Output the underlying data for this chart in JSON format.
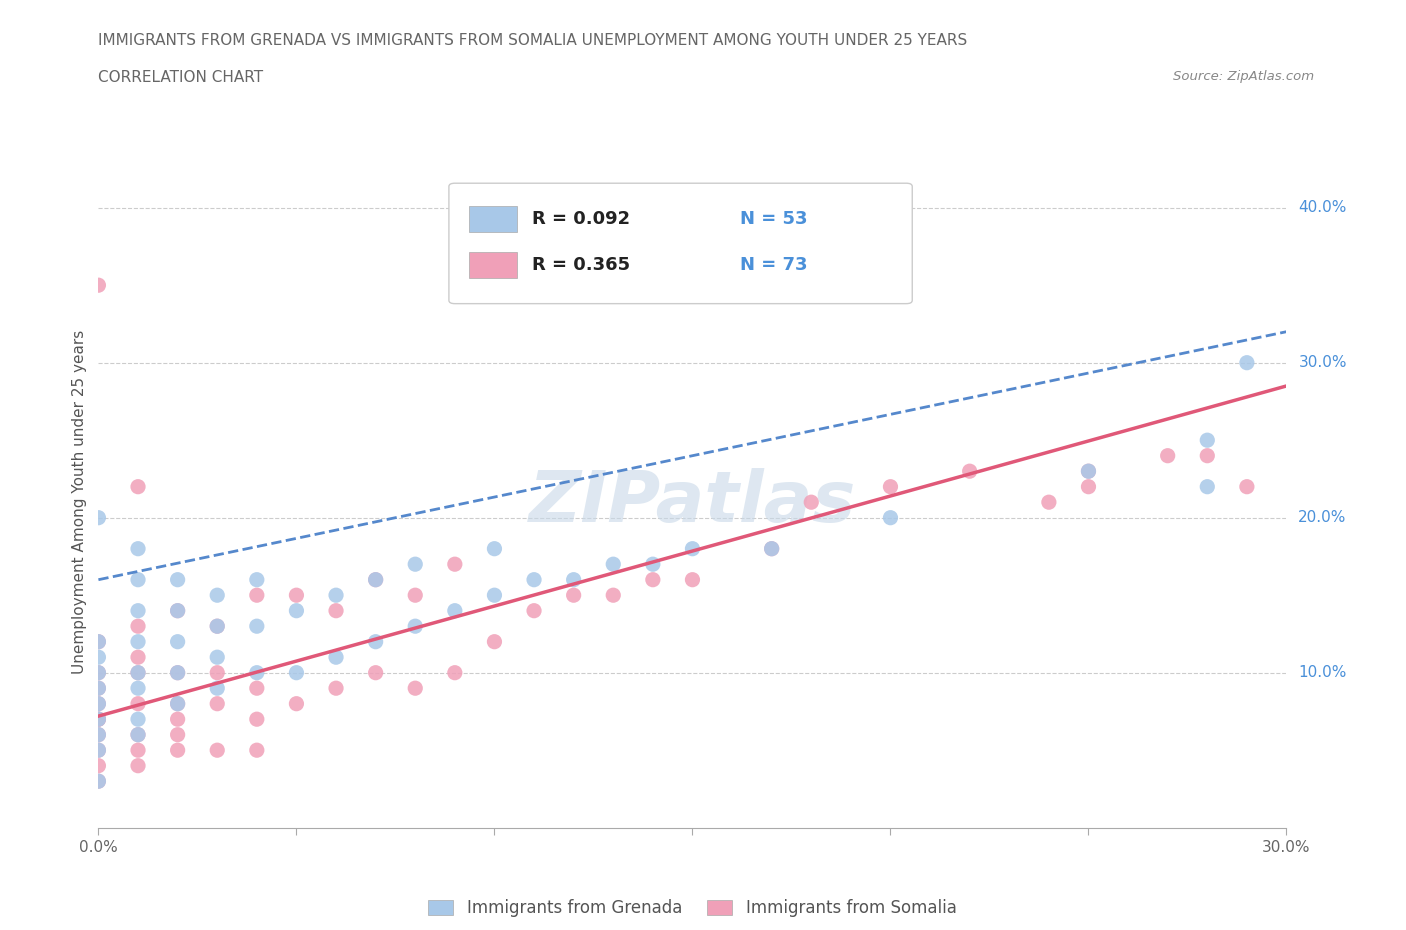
{
  "title_line1": "IMMIGRANTS FROM GRENADA VS IMMIGRANTS FROM SOMALIA UNEMPLOYMENT AMONG YOUTH UNDER 25 YEARS",
  "title_line2": "CORRELATION CHART",
  "source_text": "Source: ZipAtlas.com",
  "ylabel": "Unemployment Among Youth under 25 years",
  "xlim": [
    0.0,
    0.3
  ],
  "ylim": [
    0.0,
    0.42
  ],
  "yticks": [
    0.1,
    0.2,
    0.3,
    0.4
  ],
  "ytick_labels": [
    "10.0%",
    "20.0%",
    "30.0%",
    "40.0%"
  ],
  "xticks": [
    0.0,
    0.05,
    0.1,
    0.15,
    0.2,
    0.25,
    0.3
  ],
  "xtick_labels": [
    "0.0%",
    "",
    "",
    "",
    "",
    "",
    "30.0%"
  ],
  "grenada_color": "#a8c8e8",
  "somalia_color": "#f0a0b8",
  "grenada_line_color": "#5588cc",
  "somalia_line_color": "#e05878",
  "watermark": "ZIPatlas",
  "watermark_color": "#c8d8e8",
  "grenada_scatter_x": [
    0.0,
    0.0,
    0.0,
    0.0,
    0.0,
    0.0,
    0.0,
    0.0,
    0.0,
    0.0,
    0.01,
    0.01,
    0.01,
    0.01,
    0.01,
    0.01,
    0.01,
    0.01,
    0.02,
    0.02,
    0.02,
    0.02,
    0.02,
    0.03,
    0.03,
    0.03,
    0.03,
    0.04,
    0.04,
    0.04,
    0.05,
    0.05,
    0.06,
    0.06,
    0.07,
    0.07,
    0.08,
    0.08,
    0.09,
    0.1,
    0.1,
    0.11,
    0.12,
    0.13,
    0.14,
    0.15,
    0.17,
    0.2,
    0.25,
    0.28,
    0.28,
    0.29
  ],
  "grenada_scatter_y": [
    0.03,
    0.05,
    0.06,
    0.07,
    0.08,
    0.09,
    0.1,
    0.11,
    0.12,
    0.2,
    0.06,
    0.07,
    0.09,
    0.1,
    0.12,
    0.14,
    0.16,
    0.18,
    0.08,
    0.1,
    0.12,
    0.14,
    0.16,
    0.09,
    0.11,
    0.13,
    0.15,
    0.1,
    0.13,
    0.16,
    0.1,
    0.14,
    0.11,
    0.15,
    0.12,
    0.16,
    0.13,
    0.17,
    0.14,
    0.15,
    0.18,
    0.16,
    0.16,
    0.17,
    0.17,
    0.18,
    0.18,
    0.2,
    0.23,
    0.22,
    0.25,
    0.3
  ],
  "somalia_scatter_x": [
    0.0,
    0.0,
    0.0,
    0.0,
    0.0,
    0.0,
    0.0,
    0.0,
    0.0,
    0.0,
    0.0,
    0.01,
    0.01,
    0.01,
    0.01,
    0.01,
    0.01,
    0.01,
    0.01,
    0.02,
    0.02,
    0.02,
    0.02,
    0.02,
    0.02,
    0.03,
    0.03,
    0.03,
    0.03,
    0.04,
    0.04,
    0.04,
    0.04,
    0.05,
    0.05,
    0.06,
    0.06,
    0.07,
    0.07,
    0.08,
    0.08,
    0.09,
    0.09,
    0.1,
    0.11,
    0.12,
    0.13,
    0.14,
    0.15,
    0.17,
    0.18,
    0.2,
    0.22,
    0.24,
    0.25,
    0.25,
    0.27,
    0.28,
    0.29
  ],
  "somalia_scatter_y": [
    0.03,
    0.04,
    0.05,
    0.06,
    0.07,
    0.07,
    0.08,
    0.09,
    0.1,
    0.12,
    0.35,
    0.04,
    0.05,
    0.06,
    0.08,
    0.1,
    0.11,
    0.13,
    0.22,
    0.05,
    0.06,
    0.07,
    0.08,
    0.1,
    0.14,
    0.05,
    0.08,
    0.1,
    0.13,
    0.05,
    0.07,
    0.09,
    0.15,
    0.08,
    0.15,
    0.09,
    0.14,
    0.1,
    0.16,
    0.09,
    0.15,
    0.1,
    0.17,
    0.12,
    0.14,
    0.15,
    0.15,
    0.16,
    0.16,
    0.18,
    0.21,
    0.22,
    0.23,
    0.21,
    0.23,
    0.22,
    0.24,
    0.24,
    0.22
  ],
  "grenada_trend_x": [
    0.0,
    0.3
  ],
  "grenada_trend_y": [
    0.16,
    0.32
  ],
  "somalia_trend_x": [
    0.0,
    0.3
  ],
  "somalia_trend_y": [
    0.072,
    0.285
  ]
}
